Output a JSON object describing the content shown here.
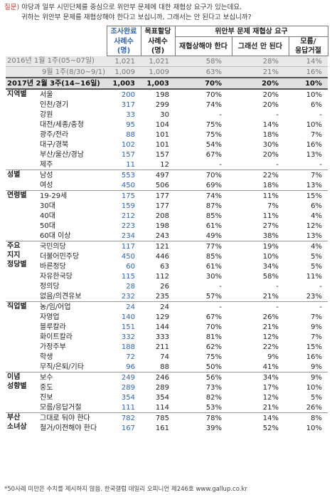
{
  "question": {
    "label": "질문)",
    "line1": "야당과 일부 시민단체를 중심으로 위안부 문제에 대한 재협상 요구가 있는데요.",
    "line2": "귀하는 위안부 문제를 재협상해야 한다고 보십니까, 그래서는 안 된다고 보십니까?"
  },
  "header": {
    "survey_done": "조사완료",
    "target_alloc": "목표할당",
    "sample_n1": "사례수\n(명)",
    "sample_n2": "사례수\n(명)",
    "group_title": "위안부 문제 재협상 요구",
    "col_renegotiate": "재협상해야 한다",
    "col_no": "그래선 안 된다",
    "col_dk": "모름/\n응답거절"
  },
  "trend_rows": [
    {
      "label": "2016년 1월 1주(05~07일)",
      "n1": "1,021",
      "n2": "1,021",
      "p1": "58%",
      "p2": "28%",
      "p3": "14%"
    },
    {
      "label": "9월 1주(8/30~9/1)",
      "n1": "1,009",
      "n2": "1,009",
      "p1": "63%",
      "p2": "21%",
      "p3": "16%"
    }
  ],
  "total_row": {
    "label": "2017년 2월 3주(14~16일)",
    "n1": "1,003",
    "n2": "1,003",
    "p1": "70%",
    "p2": "20%",
    "p3": "10%"
  },
  "groups": [
    {
      "name": "지역별",
      "rows": [
        {
          "label": "서울",
          "n1": "200",
          "n2": "198",
          "p1": "70%",
          "p2": "20%",
          "p3": "10%"
        },
        {
          "label": "인천/경기",
          "n1": "317",
          "n2": "299",
          "p1": "74%",
          "p2": "20%",
          "p3": "6%"
        },
        {
          "label": "강원",
          "n1": "33",
          "n2": "30",
          "p1": "-",
          "p2": "-",
          "p3": "-"
        },
        {
          "label": "대전/세종/충청",
          "n1": "95",
          "n2": "104",
          "p1": "75%",
          "p2": "14%",
          "p3": "10%"
        },
        {
          "label": "광주/전라",
          "n1": "88",
          "n2": "101",
          "p1": "75%",
          "p2": "18%",
          "p3": "7%"
        },
        {
          "label": "대구/경북",
          "n1": "102",
          "n2": "101",
          "p1": "54%",
          "p2": "30%",
          "p3": "16%"
        },
        {
          "label": "부산/울산/경남",
          "n1": "157",
          "n2": "157",
          "p1": "67%",
          "p2": "20%",
          "p3": "13%"
        },
        {
          "label": "제주",
          "n1": "11",
          "n2": "12",
          "p1": "-",
          "p2": "-",
          "p3": "-"
        }
      ]
    },
    {
      "name": "성별",
      "rows": [
        {
          "label": "남성",
          "n1": "553",
          "n2": "497",
          "p1": "70%",
          "p2": "22%",
          "p3": "7%"
        },
        {
          "label": "여성",
          "n1": "450",
          "n2": "506",
          "p1": "69%",
          "p2": "18%",
          "p3": "13%"
        }
      ]
    },
    {
      "name": "연령별",
      "rows": [
        {
          "label": "19-29세",
          "n1": "175",
          "n2": "177",
          "p1": "74%",
          "p2": "11%",
          "p3": "15%"
        },
        {
          "label": "30대",
          "n1": "159",
          "n2": "177",
          "p1": "87%",
          "p2": "7%",
          "p3": "6%"
        },
        {
          "label": "40대",
          "n1": "212",
          "n2": "208",
          "p1": "85%",
          "p2": "11%",
          "p3": "4%"
        },
        {
          "label": "50대",
          "n1": "223",
          "n2": "198",
          "p1": "61%",
          "p2": "27%",
          "p3": "12%"
        },
        {
          "label": "60대 이상",
          "n1": "234",
          "n2": "243",
          "p1": "49%",
          "p2": "38%",
          "p3": "13%"
        }
      ]
    },
    {
      "name": "주요\n지지\n정당별",
      "rows": [
        {
          "label": "국민의당",
          "n1": "117",
          "n2": "121",
          "p1": "77%",
          "p2": "19%",
          "p3": "4%"
        },
        {
          "label": "더불어민주당",
          "n1": "450",
          "n2": "446",
          "p1": "85%",
          "p2": "10%",
          "p3": "5%"
        },
        {
          "label": "바른정당",
          "n1": "60",
          "n2": "63",
          "p1": "61%",
          "p2": "34%",
          "p3": "5%"
        },
        {
          "label": "자유한국당",
          "n1": "115",
          "n2": "112",
          "p1": "30%",
          "p2": "58%",
          "p3": "11%"
        },
        {
          "label": "정의당",
          "n1": "28",
          "n2": "26",
          "p1": "-",
          "p2": "-",
          "p3": "-"
        },
        {
          "label": "없음/의견유보",
          "n1": "232",
          "n2": "235",
          "p1": "57%",
          "p2": "21%",
          "p3": "23%"
        }
      ]
    },
    {
      "name": "직업별",
      "rows": [
        {
          "label": "농/임/어업",
          "n1": "24",
          "n2": "24",
          "p1": "-",
          "p2": "-",
          "p3": "-"
        },
        {
          "label": "자영업",
          "n1": "140",
          "n2": "129",
          "p1": "67%",
          "p2": "26%",
          "p3": "7%"
        },
        {
          "label": "블루칼라",
          "n1": "151",
          "n2": "144",
          "p1": "70%",
          "p2": "21%",
          "p3": "9%"
        },
        {
          "label": "화이트칼라",
          "n1": "332",
          "n2": "333",
          "p1": "81%",
          "p2": "12%",
          "p3": "7%"
        },
        {
          "label": "가정주부",
          "n1": "188",
          "n2": "211",
          "p1": "62%",
          "p2": "22%",
          "p3": "15%"
        },
        {
          "label": "학생",
          "n1": "72",
          "n2": "74",
          "p1": "75%",
          "p2": "9%",
          "p3": "16%"
        },
        {
          "label": "무직/은퇴/기타",
          "n1": "96",
          "n2": "88",
          "p1": "50%",
          "p2": "41%",
          "p3": "9%"
        }
      ]
    },
    {
      "name": "이념\n성향별",
      "rows": [
        {
          "label": "보수",
          "n1": "249",
          "n2": "246",
          "p1": "56%",
          "p2": "34%",
          "p3": "9%"
        },
        {
          "label": "중도",
          "n1": "289",
          "n2": "289",
          "p1": "73%",
          "p2": "17%",
          "p3": "10%"
        },
        {
          "label": "진보",
          "n1": "354",
          "n2": "354",
          "p1": "82%",
          "p2": "12%",
          "p3": "5%"
        },
        {
          "label": "모름/응답거절",
          "n1": "111",
          "n2": "114",
          "p1": "53%",
          "p2": "21%",
          "p3": "26%"
        }
      ]
    },
    {
      "name": "부산\n소녀상",
      "rows": [
        {
          "label": "그대로 둬야 한다",
          "n1": "782",
          "n2": "785",
          "p1": "78%",
          "p2": "14%",
          "p3": "8%"
        },
        {
          "label": "철거/이전해야 한다",
          "n1": "167",
          "n2": "161",
          "p1": "39%",
          "p2": "52%",
          "p3": "10%"
        }
      ]
    }
  ],
  "footnote": "*50사례 미만은 수치를 제시하지 않음. 한국갤럽 데일리 오피니언 제246호 www.gallup.co.kr"
}
